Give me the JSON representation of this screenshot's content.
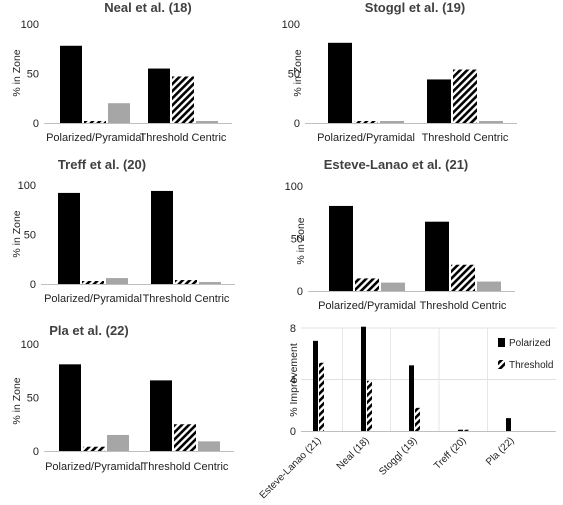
{
  "chart_data": [
    {
      "id": "neal",
      "type": "bar",
      "title": "Neal et al. (18)",
      "ylabel": "% in Zone",
      "ylim": [
        0,
        100
      ],
      "yticks": [
        0,
        50,
        100
      ],
      "categories": [
        "Polarized/Pyramidal",
        "Threshold Centric"
      ],
      "series": [
        {
          "values": [
            78,
            55
          ],
          "fill": "solid",
          "color": "#000000"
        },
        {
          "values": [
            2,
            47
          ],
          "fill": "hatched",
          "color": "#000000"
        },
        {
          "values": [
            20,
            2
          ],
          "fill": "solid",
          "color": "#a6a6a6"
        }
      ]
    },
    {
      "id": "stoggl",
      "type": "bar",
      "title": "Stoggl et al. (19)",
      "ylabel": "% in Zone",
      "ylim": [
        0,
        100
      ],
      "yticks": [
        0,
        50,
        100
      ],
      "categories": [
        "Polarized/Pyramidal",
        "Threshold Centric"
      ],
      "series": [
        {
          "values": [
            81,
            44
          ],
          "fill": "solid",
          "color": "#000000"
        },
        {
          "values": [
            2,
            54
          ],
          "fill": "hatched",
          "color": "#000000"
        },
        {
          "values": [
            2,
            2
          ],
          "fill": "solid",
          "color": "#a6a6a6"
        }
      ]
    },
    {
      "id": "treff",
      "type": "bar",
      "title": "Treff et al. (20)",
      "ylabel": "% in Zone",
      "ylim": [
        0,
        100
      ],
      "yticks": [
        0,
        50,
        100
      ],
      "categories": [
        "Polarized/Pyramidal",
        "Threshold Centric"
      ],
      "series": [
        {
          "values": [
            92,
            94
          ],
          "fill": "solid",
          "color": "#000000"
        },
        {
          "values": [
            3,
            4
          ],
          "fill": "hatched",
          "color": "#000000"
        },
        {
          "values": [
            6,
            2
          ],
          "fill": "solid",
          "color": "#a6a6a6"
        }
      ]
    },
    {
      "id": "esteve",
      "type": "bar",
      "title": "Esteve-Lanao et al. (21)",
      "ylabel": "% in Zone",
      "ylim": [
        0,
        100
      ],
      "yticks": [
        0,
        50,
        100
      ],
      "categories": [
        "Polarized/Pyramidal",
        "Threshold Centric"
      ],
      "series": [
        {
          "values": [
            81,
            66
          ],
          "fill": "solid",
          "color": "#000000"
        },
        {
          "values": [
            12,
            25
          ],
          "fill": "hatched",
          "color": "#000000"
        },
        {
          "values": [
            8,
            9
          ],
          "fill": "solid",
          "color": "#a6a6a6"
        }
      ]
    },
    {
      "id": "pla",
      "type": "bar",
      "title": "Pla et al. (22)",
      "ylabel": "% in Zone",
      "ylim": [
        0,
        100
      ],
      "yticks": [
        0,
        50,
        100
      ],
      "categories": [
        "Polarized/Pyramidal",
        "Threshold Centric"
      ],
      "series": [
        {
          "values": [
            81,
            66
          ],
          "fill": "solid",
          "color": "#000000"
        },
        {
          "values": [
            4,
            25
          ],
          "fill": "hatched",
          "color": "#000000"
        },
        {
          "values": [
            15,
            9
          ],
          "fill": "solid",
          "color": "#a6a6a6"
        }
      ]
    },
    {
      "id": "improvement",
      "type": "bar",
      "title": "",
      "ylabel": "% Improvement",
      "ylim": [
        0,
        8
      ],
      "yticks": [
        0,
        4,
        8
      ],
      "grid": true,
      "legend_position": "top-right",
      "categories": [
        "Esteve-Lanao (21)",
        "Neal (18)",
        "Stoggl (19)",
        "Treff (20)",
        "Pla (22)"
      ],
      "series": [
        {
          "name": "Polarized",
          "values": [
            7.0,
            8.1,
            5.1,
            0.1,
            1.0
          ],
          "fill": "solid",
          "color": "#000000"
        },
        {
          "name": "Threshold",
          "values": [
            5.3,
            3.9,
            1.8,
            0.1,
            0.0
          ],
          "fill": "hatched",
          "color": "#000000"
        }
      ]
    }
  ]
}
